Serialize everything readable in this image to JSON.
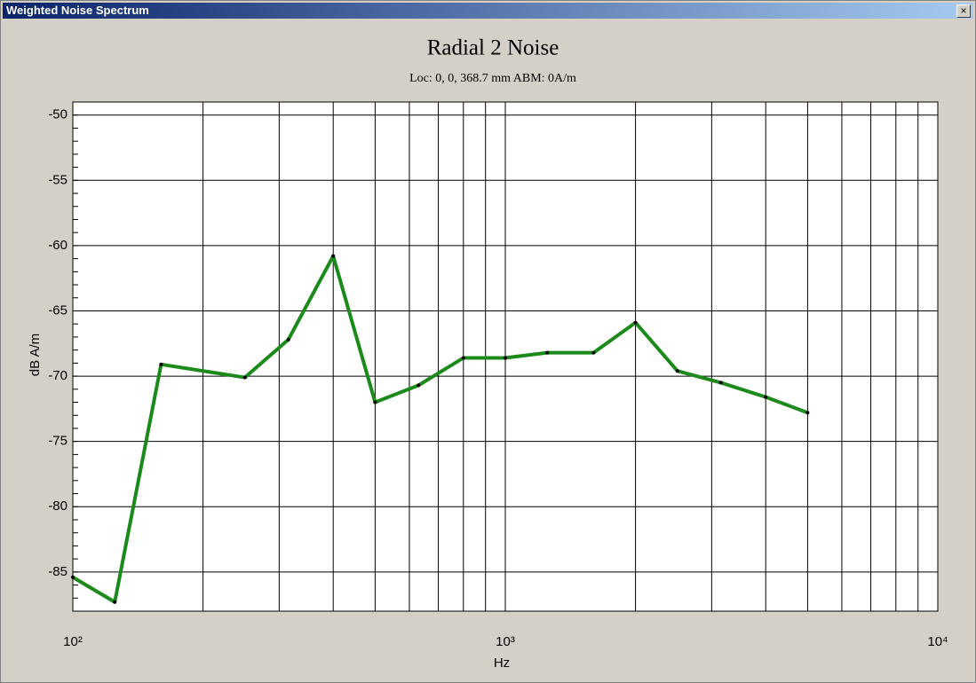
{
  "window_title": "Weighted Noise Spectrum",
  "close_button": "×",
  "chart_data": {
    "type": "line",
    "title": "Radial 2 Noise",
    "subtitle": "Loc: 0, 0, 368.7 mm ABM: 0A/m",
    "x_label": "Hz",
    "y_label": "dB A/m",
    "x": [
      100,
      125,
      160,
      250,
      315,
      400,
      500,
      630,
      800,
      1000,
      1250,
      1600,
      2000,
      2500,
      3150,
      4000,
      5000
    ],
    "series": [
      {
        "color": "#1b8a1b",
        "values": [
          -85.4,
          -87.3,
          -69.1,
          -70.1,
          -67.2,
          -60.8,
          -72.0,
          -70.7,
          -68.6,
          -68.6,
          -68.2,
          -68.2,
          -65.9,
          -69.6,
          -70.5,
          -71.6,
          -72.8
        ]
      }
    ],
    "xscale": "log",
    "xlim": [
      100,
      10000
    ],
    "xticks": [
      {
        "value": 100,
        "label": "10²"
      },
      {
        "value": 1000,
        "label": "10³"
      },
      {
        "value": 10000,
        "label": "10⁴"
      }
    ],
    "ylim": [
      -88,
      -49
    ],
    "yticks": [
      -50,
      -55,
      -60,
      -65,
      -70,
      -75,
      -80,
      -85
    ],
    "grid": true
  }
}
